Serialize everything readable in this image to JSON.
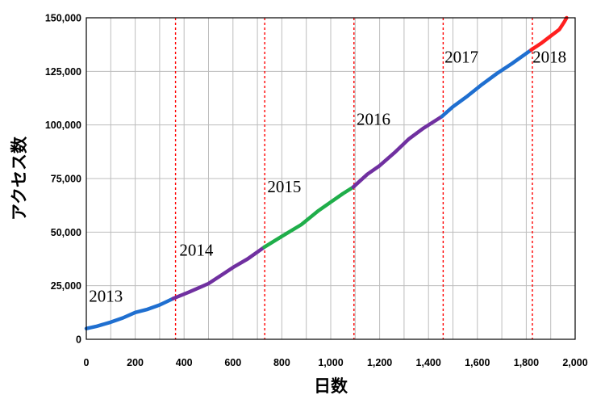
{
  "chart_data": {
    "type": "line",
    "xlabel": "日数",
    "ylabel": "アクセス数",
    "xlim": [
      0,
      2000
    ],
    "ylim": [
      0,
      150000
    ],
    "x_ticks": [
      0,
      200,
      400,
      600,
      800,
      1000,
      1200,
      1400,
      1600,
      1800,
      2000
    ],
    "y_ticks": [
      0,
      25000,
      50000,
      75000,
      100000,
      125000,
      150000
    ],
    "x_tick_labels": [
      "0",
      "200",
      "400",
      "600",
      "800",
      "1,000",
      "1,200",
      "1,400",
      "1,600",
      "1,800",
      "2,000"
    ],
    "y_tick_labels": [
      "0",
      "25,000",
      "50,000",
      "75,000",
      "100,000",
      "125,000",
      "150,000"
    ],
    "grid": true,
    "x_minor_step": 100,
    "year_boundaries": [
      365,
      730,
      1095,
      1460,
      1825
    ],
    "boundary_color": "#ff0000",
    "series": [
      {
        "name": "2013",
        "color": "#1f6fd0",
        "label_pos": [
          80,
          17500
        ],
        "points": [
          [
            0,
            5000
          ],
          [
            40,
            6000
          ],
          [
            100,
            8000
          ],
          [
            150,
            10000
          ],
          [
            200,
            12500
          ],
          [
            250,
            14000
          ],
          [
            300,
            16000
          ],
          [
            355,
            19000
          ]
        ]
      },
      {
        "name": "2014",
        "color": "#7030a0",
        "label_pos": [
          450,
          39000
        ],
        "points": [
          [
            355,
            19000
          ],
          [
            420,
            22000
          ],
          [
            500,
            26000
          ],
          [
            560,
            30500
          ],
          [
            600,
            33500
          ],
          [
            660,
            37500
          ],
          [
            728,
            43000
          ]
        ]
      },
      {
        "name": "2015",
        "color": "#1fae4a",
        "label_pos": [
          810,
          68500
        ],
        "points": [
          [
            728,
            43000
          ],
          [
            800,
            48000
          ],
          [
            880,
            53500
          ],
          [
            950,
            60000
          ],
          [
            1000,
            64000
          ],
          [
            1050,
            68000
          ],
          [
            1092,
            71000
          ]
        ]
      },
      {
        "name": "2016",
        "color": "#7030a0",
        "label_pos": [
          1175,
          100000
        ],
        "points": [
          [
            1092,
            71000
          ],
          [
            1150,
            77000
          ],
          [
            1200,
            81000
          ],
          [
            1260,
            87000
          ],
          [
            1320,
            93500
          ],
          [
            1380,
            98500
          ],
          [
            1455,
            104000
          ]
        ]
      },
      {
        "name": "2017",
        "color": "#1f6fd0",
        "label_pos": [
          1535,
          129000
        ],
        "points": [
          [
            1455,
            104000
          ],
          [
            1500,
            108500
          ],
          [
            1560,
            113500
          ],
          [
            1620,
            119000
          ],
          [
            1680,
            124000
          ],
          [
            1740,
            128500
          ],
          [
            1820,
            135000
          ]
        ]
      },
      {
        "name": "2018",
        "color": "#ff2020",
        "label_pos": [
          1895,
          129000
        ],
        "points": [
          [
            1820,
            135000
          ],
          [
            1860,
            138000
          ],
          [
            1900,
            141500
          ],
          [
            1935,
            144500
          ],
          [
            1955,
            148000
          ],
          [
            1965,
            150000
          ]
        ]
      }
    ]
  }
}
